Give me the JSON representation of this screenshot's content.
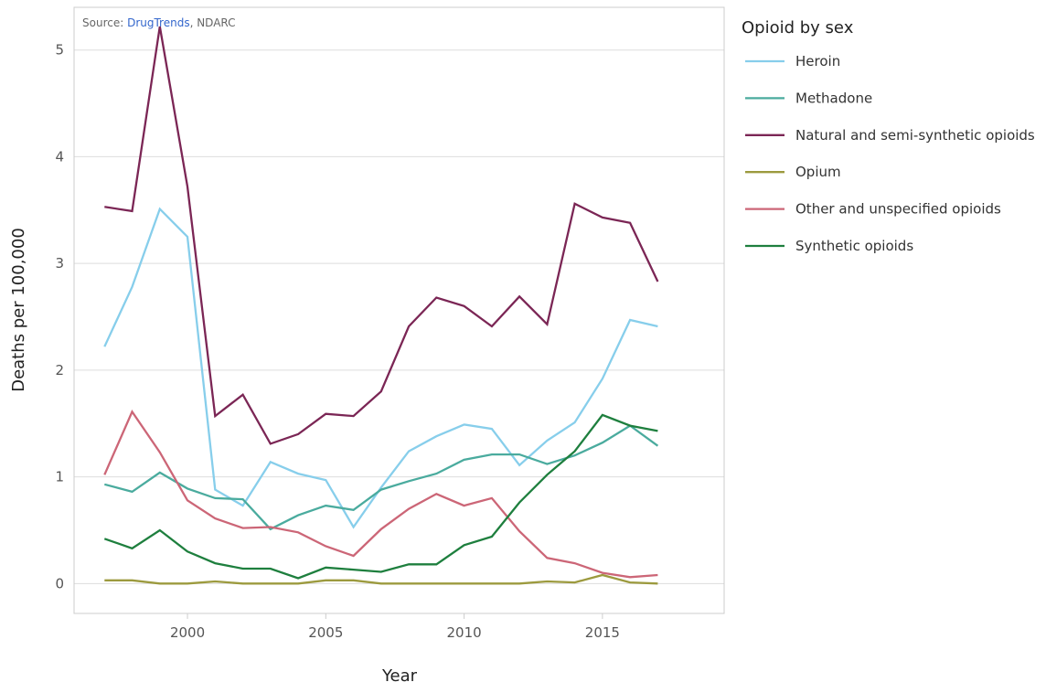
{
  "source": {
    "prefix": "Source: ",
    "link": "DrugTrends",
    "suffix": ", NDARC"
  },
  "legend": {
    "title": "Opioid by sex"
  },
  "chart_data": {
    "type": "line",
    "title": "",
    "xlabel": "Year",
    "ylabel": "Deaths per 100,000",
    "xlim": [
      1995.9,
      2019.4
    ],
    "ylim": [
      -0.28,
      5.4
    ],
    "x_ticks": [
      2000,
      2005,
      2010,
      2015
    ],
    "y_ticks": [
      0,
      1,
      2,
      3,
      4,
      5
    ],
    "grid": "horizontal",
    "legend_position": "right",
    "x": [
      1997,
      1998,
      1999,
      2000,
      2001,
      2002,
      2003,
      2004,
      2005,
      2006,
      2007,
      2008,
      2009,
      2010,
      2011,
      2012,
      2013,
      2014,
      2015,
      2016,
      2017
    ],
    "series": [
      {
        "name": "Heroin",
        "color": "#87ceeb",
        "values": [
          2.22,
          2.78,
          3.51,
          3.25,
          0.88,
          0.73,
          1.14,
          1.03,
          0.97,
          0.53,
          0.9,
          1.24,
          1.38,
          1.49,
          1.45,
          1.11,
          1.34,
          1.51,
          1.92,
          2.47,
          2.41
        ]
      },
      {
        "name": "Methadone",
        "color": "#4aab9e",
        "values": [
          0.93,
          0.86,
          1.04,
          0.89,
          0.8,
          0.79,
          0.51,
          0.64,
          0.73,
          0.69,
          0.88,
          0.96,
          1.03,
          1.16,
          1.21,
          1.21,
          1.12,
          1.2,
          1.32,
          1.48,
          1.29
        ]
      },
      {
        "name": "Natural and semi-synthetic opioids",
        "color": "#7b2655",
        "values": [
          3.53,
          3.49,
          5.22,
          3.72,
          1.57,
          1.77,
          1.31,
          1.4,
          1.59,
          1.57,
          1.8,
          2.41,
          2.68,
          2.6,
          2.41,
          2.69,
          2.43,
          3.56,
          3.43,
          3.38,
          2.83
        ]
      },
      {
        "name": "Opium",
        "color": "#9c9a3e",
        "values": [
          0.03,
          0.03,
          0.0,
          0.0,
          0.02,
          0.0,
          0.0,
          0.0,
          0.03,
          0.03,
          0.0,
          0.0,
          0.0,
          0.0,
          0.0,
          0.0,
          0.02,
          0.01,
          0.08,
          0.01,
          0.0
        ]
      },
      {
        "name": "Other and unspecified opioids",
        "color": "#cc6677",
        "values": [
          1.02,
          1.61,
          1.23,
          0.78,
          0.61,
          0.52,
          0.53,
          0.48,
          0.35,
          0.26,
          0.51,
          0.7,
          0.84,
          0.73,
          0.8,
          0.49,
          0.24,
          0.19,
          0.1,
          0.06,
          0.08
        ]
      },
      {
        "name": "Synthetic opioids",
        "color": "#1e7f3e",
        "values": [
          0.42,
          0.33,
          0.5,
          0.3,
          0.19,
          0.14,
          0.14,
          0.05,
          0.15,
          0.13,
          0.11,
          0.18,
          0.18,
          0.36,
          0.44,
          0.76,
          1.02,
          1.24,
          1.58,
          1.48,
          1.43
        ]
      }
    ]
  }
}
